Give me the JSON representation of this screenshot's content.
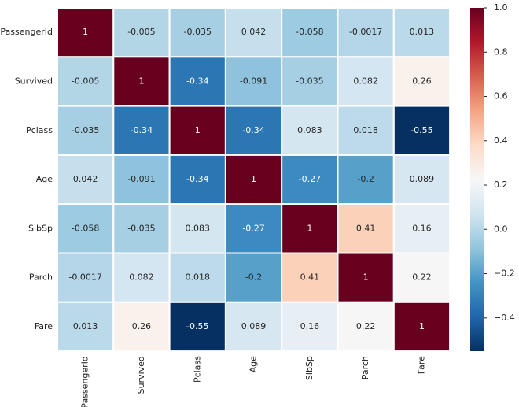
{
  "chart_data": {
    "type": "heatmap",
    "title": "",
    "xlabel": "",
    "ylabel": "",
    "x_categories": [
      "PassengerId",
      "Survived",
      "Pclass",
      "Age",
      "SibSp",
      "Parch",
      "Fare"
    ],
    "y_categories": [
      "PassengerId",
      "Survived",
      "Pclass",
      "Age",
      "SibSp",
      "Parch",
      "Fare"
    ],
    "values": [
      [
        1,
        -0.005,
        -0.035,
        0.042,
        -0.058,
        -0.0017,
        0.013
      ],
      [
        -0.005,
        1,
        -0.34,
        -0.091,
        -0.035,
        0.082,
        0.26
      ],
      [
        -0.035,
        -0.34,
        1,
        -0.34,
        0.083,
        0.018,
        -0.55
      ],
      [
        0.042,
        -0.091,
        -0.34,
        1,
        -0.27,
        -0.2,
        0.089
      ],
      [
        -0.058,
        -0.035,
        0.083,
        -0.27,
        1,
        0.41,
        0.16
      ],
      [
        -0.0017,
        0.082,
        0.018,
        -0.2,
        0.41,
        1,
        0.22
      ],
      [
        0.013,
        0.26,
        -0.55,
        0.089,
        0.16,
        0.22,
        1
      ]
    ],
    "annotations": [
      [
        "1",
        "-0.005",
        "-0.035",
        "0.042",
        "-0.058",
        "-0.0017",
        "0.013"
      ],
      [
        "-0.005",
        "1",
        "-0.34",
        "-0.091",
        "-0.035",
        "0.082",
        "0.26"
      ],
      [
        "-0.035",
        "-0.34",
        "1",
        "-0.34",
        "0.083",
        "0.018",
        "-0.55"
      ],
      [
        "0.042",
        "-0.091",
        "-0.34",
        "1",
        "-0.27",
        "-0.2",
        "0.089"
      ],
      [
        "-0.058",
        "-0.035",
        "0.083",
        "-0.27",
        "1",
        "0.41",
        "0.16"
      ],
      [
        "-0.0017",
        "0.082",
        "0.018",
        "-0.2",
        "0.41",
        "1",
        "0.22"
      ],
      [
        "0.013",
        "0.26",
        "-0.55",
        "0.089",
        "0.16",
        "0.22",
        "1"
      ]
    ],
    "colorbar": {
      "min": -0.55,
      "max": 1.0,
      "ticks": [
        -0.4,
        -0.2,
        0.0,
        0.2,
        0.4,
        0.6,
        0.8,
        1.0
      ],
      "tick_labels": [
        "−0.4",
        "−0.2",
        "0.0",
        "0.2",
        "0.4",
        "0.6",
        "0.8",
        "1.0"
      ],
      "colormap": "RdBu_r",
      "colormap_stops": [
        [
          0.0,
          "#053061"
        ],
        [
          0.1,
          "#2166ac"
        ],
        [
          0.2,
          "#4393c3"
        ],
        [
          0.3,
          "#92c5de"
        ],
        [
          0.4,
          "#d1e5f0"
        ],
        [
          0.5,
          "#f7f7f7"
        ],
        [
          0.6,
          "#fddbc7"
        ],
        [
          0.7,
          "#f4a582"
        ],
        [
          0.8,
          "#d6604d"
        ],
        [
          0.9,
          "#b2182b"
        ],
        [
          1.0,
          "#67001f"
        ]
      ]
    },
    "cell_border_color": "#ffffff",
    "grid": false
  }
}
